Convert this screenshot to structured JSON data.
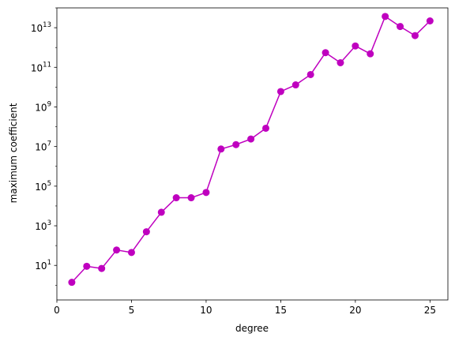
{
  "chart_data": {
    "type": "line",
    "xlabel": "degree",
    "ylabel": "maximum coefficient",
    "xlim": [
      0,
      26.2
    ],
    "ylim": [
      0.18,
      100000000000000.0
    ],
    "y_scale": "log",
    "grid": false,
    "legend": "none",
    "x_ticks": [
      0,
      5,
      10,
      15,
      20,
      25
    ],
    "x_tick_labels": [
      "0",
      "5",
      "10",
      "15",
      "20",
      "25"
    ],
    "y_ticks": [
      10,
      1000,
      100000,
      10000000,
      1000000000,
      100000000000,
      10000000000000
    ],
    "y_tick_labels": [
      {
        "base": "10",
        "exp": "1"
      },
      {
        "base": "10",
        "exp": "3"
      },
      {
        "base": "10",
        "exp": "5"
      },
      {
        "base": "10",
        "exp": "7"
      },
      {
        "base": "10",
        "exp": "9"
      },
      {
        "base": "10",
        "exp": "11"
      },
      {
        "base": "10",
        "exp": "13"
      }
    ],
    "series": [
      {
        "color": "#bf00bf",
        "marker": "circle",
        "x": [
          1,
          2,
          3,
          4,
          5,
          6,
          7,
          8,
          9,
          10,
          11,
          12,
          13,
          14,
          15,
          16,
          17,
          18,
          19,
          20,
          21,
          22,
          23,
          24,
          25
        ],
        "y": [
          1.4,
          9,
          7,
          60,
          45,
          500,
          4800,
          26000,
          26000,
          48000,
          7500000,
          12500000,
          24000000,
          84000000,
          6000000000,
          13000000000,
          43000000000,
          550000000000,
          170000000000,
          1200000000000,
          480000000000,
          37000000000000,
          11500000000000,
          4000000000000,
          22000000000000
        ]
      }
    ]
  }
}
